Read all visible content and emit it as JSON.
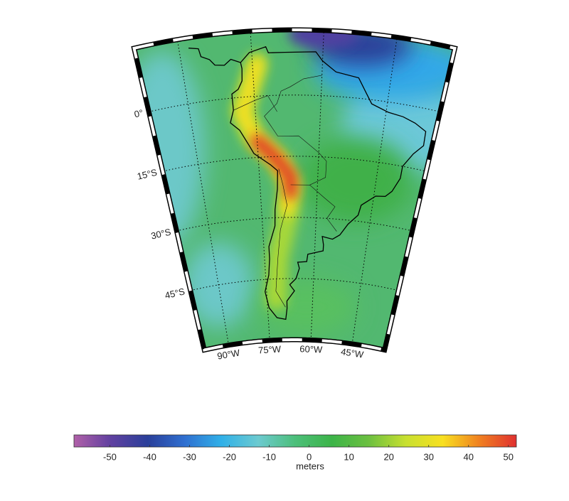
{
  "map": {
    "lonlim": [
      -99,
      -33
    ],
    "latlim": [
      -60,
      16
    ],
    "parallels": [
      {
        "value": 0,
        "label": "0°"
      },
      {
        "value": -15,
        "label": "15°S"
      },
      {
        "value": -30,
        "label": "30°S"
      },
      {
        "value": -45,
        "label": "45°S"
      }
    ],
    "meridians": [
      {
        "value": -90,
        "label": "90°W"
      },
      {
        "value": -75,
        "label": "75°W"
      },
      {
        "value": -60,
        "label": "60°W"
      },
      {
        "value": -45,
        "label": "45°W"
      }
    ]
  },
  "colorbar": {
    "label": "meters",
    "lim": [
      -59,
      52
    ],
    "ticks": [
      -50,
      -40,
      -30,
      -20,
      -10,
      0,
      10,
      20,
      30,
      40,
      50
    ],
    "colormap": [
      "#b060a8",
      "#6040a0",
      "#2a3f9a",
      "#2f6fd0",
      "#30b0e8",
      "#6ccad0",
      "#4cbf7a",
      "#3cb448",
      "#6cc040",
      "#c8e030",
      "#f8e020",
      "#f08020",
      "#e03030"
    ]
  }
}
